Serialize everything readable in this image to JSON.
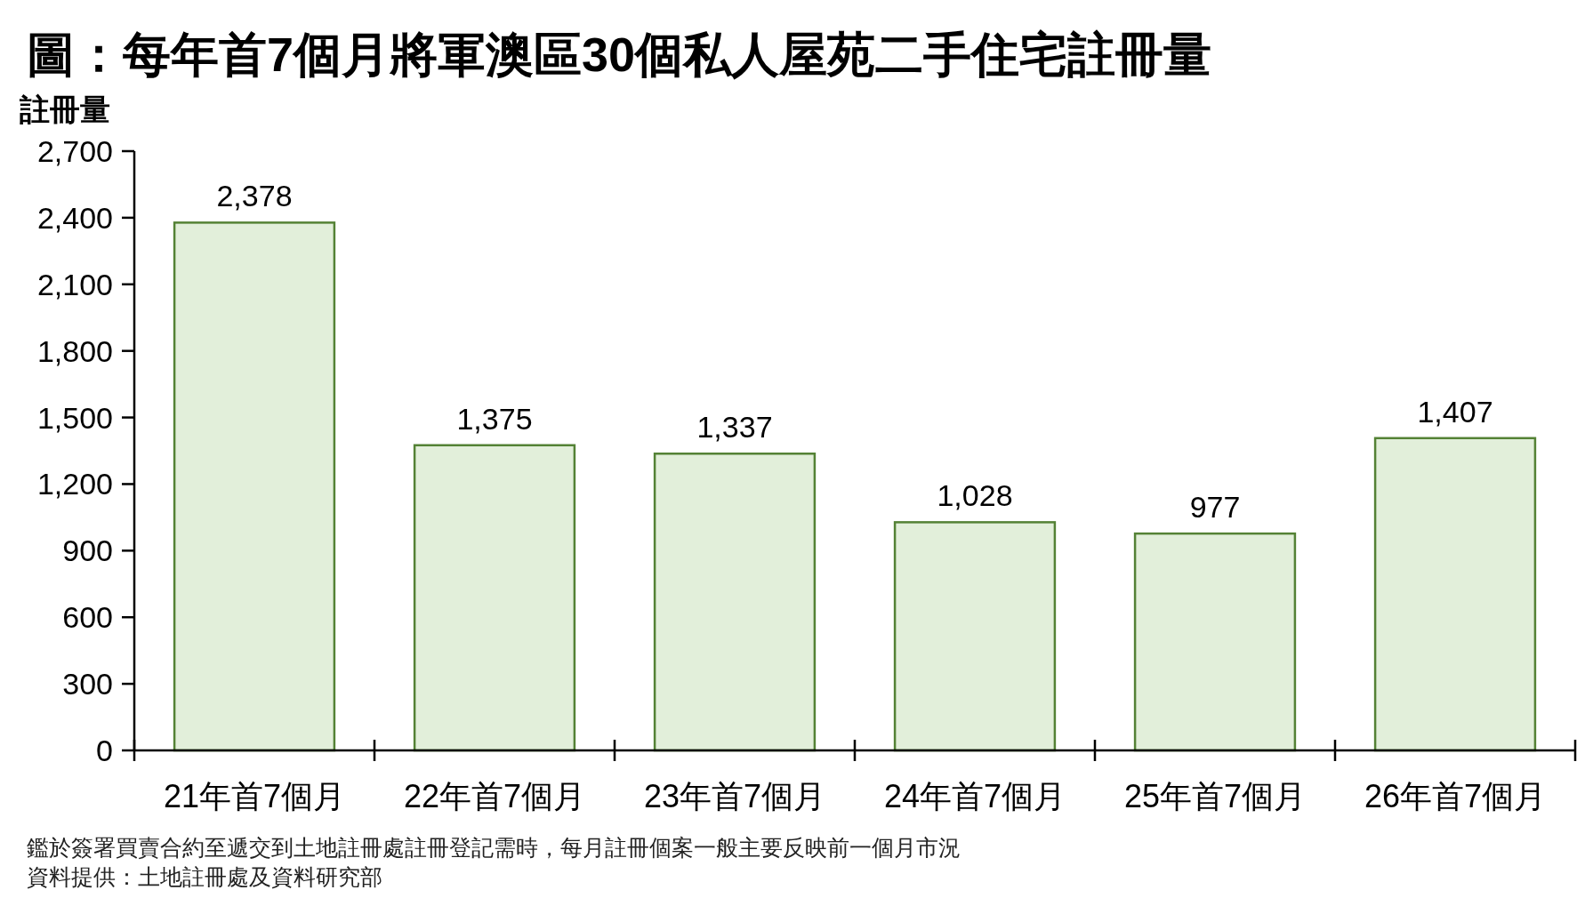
{
  "chart_data": {
    "type": "bar",
    "title": "圖：每年首7個月將軍澳區30個私人屋苑二手住宅註冊量",
    "ylabel": "註冊量",
    "categories": [
      "21年首7個月",
      "22年首7個月",
      "23年首7個月",
      "24年首7個月",
      "25年首7個月",
      "26年首7個月"
    ],
    "values": [
      2378,
      1375,
      1337,
      1028,
      977,
      1407
    ],
    "value_labels": [
      "2,378",
      "1,375",
      "1,337",
      "1,028",
      "977",
      "1,407"
    ],
    "color": "#e2efda",
    "ylim": [
      0,
      2700
    ],
    "yticks": [
      0,
      300,
      600,
      900,
      {
        "value": 1200,
        "label": "1,200"
      },
      {
        "value": 1500,
        "label": "1,500"
      },
      {
        "value": 1800,
        "label": "1,800"
      },
      {
        "value": 2100,
        "label": "2,100"
      },
      {
        "value": 2400,
        "label": "2,400"
      },
      {
        "value": 2700,
        "label": "2,700"
      }
    ],
    "grid": false,
    "annotations": [
      "鑑於簽署買賣合約至遞交到土地註冊處註冊登記需時，每月註冊個案一般主要反映前一個月市況",
      "資料提供：土地註冊處及資料研究部"
    ]
  }
}
